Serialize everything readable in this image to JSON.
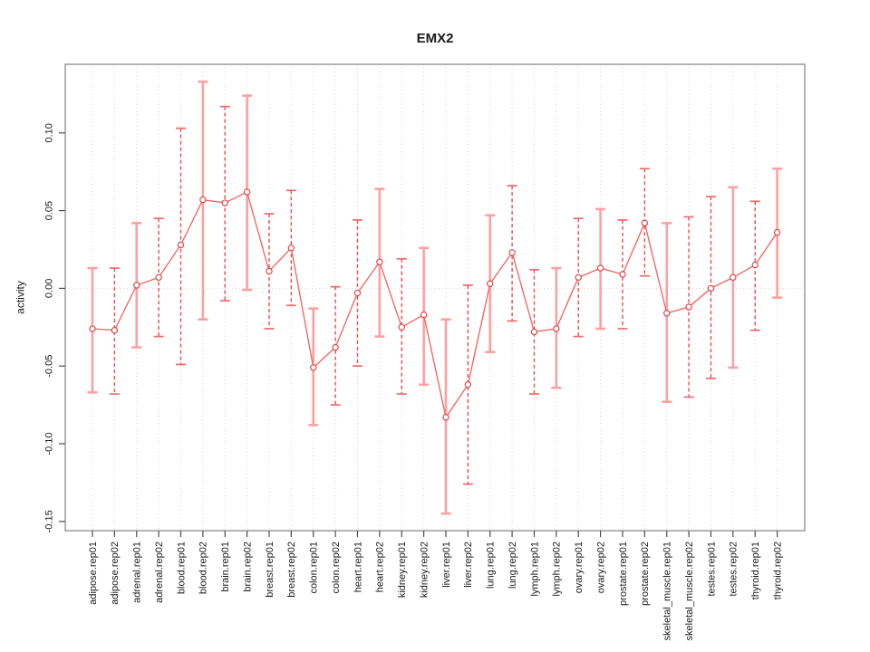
{
  "chart_data": {
    "type": "scatter",
    "title": "EMX2",
    "xlabel": "",
    "ylabel": "activity",
    "ylim": [
      -0.156,
      0.144
    ],
    "yticks": [
      0.1,
      0.05,
      0.0,
      -0.05,
      -0.1,
      -0.15
    ],
    "ytick_labels": [
      "0.10",
      "0.05",
      "0.00",
      "-0.05",
      "-0.10",
      "-0.15"
    ],
    "grid": "vertical-dotted",
    "zero_reference_line": 0.0,
    "legend": "none",
    "categories": [
      "adipose.rep01",
      "adipose.rep02",
      "adrenal.rep01",
      "adrenal.rep02",
      "blood.rep01",
      "blood.rep02",
      "brain.rep01",
      "brain.rep02",
      "breast.rep01",
      "breast.rep02",
      "colon.rep01",
      "colon.rep02",
      "heart.rep01",
      "heart.rep02",
      "kidney.rep01",
      "kidney.rep02",
      "liver.rep01",
      "liver.rep02",
      "lung.rep01",
      "lung.rep02",
      "lymph.rep01",
      "lymph.rep02",
      "ovary.rep01",
      "ovary.rep02",
      "prostate.rep01",
      "prostate.rep02",
      "skeletal_muscle.rep01",
      "skeletal_muscle.rep02",
      "testes.rep01",
      "testes.rep02",
      "thyroid.rep01",
      "thyroid.rep02"
    ],
    "series": [
      {
        "name": "activity",
        "marker": "open-circle",
        "connected": true,
        "values": [
          -0.026,
          -0.027,
          0.002,
          0.007,
          0.028,
          0.057,
          0.055,
          0.062,
          0.011,
          0.026,
          -0.051,
          -0.038,
          -0.003,
          0.017,
          -0.025,
          -0.017,
          -0.083,
          -0.062,
          0.003,
          0.023,
          -0.028,
          -0.026,
          0.007,
          0.013,
          0.009,
          0.042,
          -0.016,
          -0.012,
          0.0,
          0.007,
          0.015,
          0.036
        ],
        "err_high": [
          0.013,
          0.013,
          0.042,
          0.045,
          0.103,
          0.133,
          0.117,
          0.124,
          0.048,
          0.063,
          -0.013,
          0.001,
          0.044,
          0.064,
          0.019,
          0.026,
          -0.02,
          0.002,
          0.047,
          0.066,
          0.012,
          0.013,
          0.045,
          0.051,
          0.044,
          0.077,
          0.042,
          0.046,
          0.059,
          0.065,
          0.056,
          0.077
        ],
        "err_low": [
          -0.067,
          -0.068,
          -0.038,
          -0.031,
          -0.049,
          -0.02,
          -0.008,
          -0.001,
          -0.026,
          -0.011,
          -0.088,
          -0.075,
          -0.05,
          -0.031,
          -0.068,
          -0.062,
          -0.145,
          -0.126,
          -0.041,
          -0.021,
          -0.068,
          -0.064,
          -0.031,
          -0.026,
          -0.026,
          0.008,
          -0.073,
          -0.07,
          -0.058,
          -0.051,
          -0.027,
          -0.006
        ],
        "bar_styles": [
          "solid",
          "dashed",
          "solid",
          "dashed",
          "dashed",
          "solid",
          "dashed",
          "solid",
          "dashed",
          "dashed",
          "solid",
          "dashed",
          "dashed",
          "solid",
          "dashed",
          "solid",
          "solid",
          "dashed",
          "solid",
          "dashed",
          "dashed",
          "solid",
          "dashed",
          "solid",
          "dashed",
          "dashed",
          "solid",
          "dashed",
          "dashed",
          "solid",
          "dashed",
          "solid"
        ]
      }
    ],
    "colors": {
      "point": "#e04848",
      "line": "#f15f5f",
      "errorbar_solid": "#ffa0a0",
      "errorbar_dashed": "#e84d4d",
      "errorbar_dashed_cap": "#ef6a6a",
      "grid": "#d4d4d4",
      "zero_line": "#e8caca",
      "axis_box": "#8c8c8c",
      "tick": "#4d4d4d",
      "text": "#1a1a1a",
      "background": "#ffffff"
    }
  }
}
